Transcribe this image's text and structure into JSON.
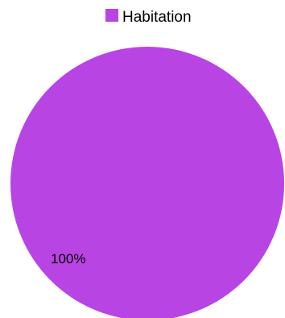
{
  "chart_data": {
    "type": "pie",
    "categories": [
      "Habitation"
    ],
    "values": [
      100
    ],
    "data_labels": [
      "100%"
    ],
    "colors": [
      "#b944e4"
    ],
    "legend_position": "top"
  }
}
